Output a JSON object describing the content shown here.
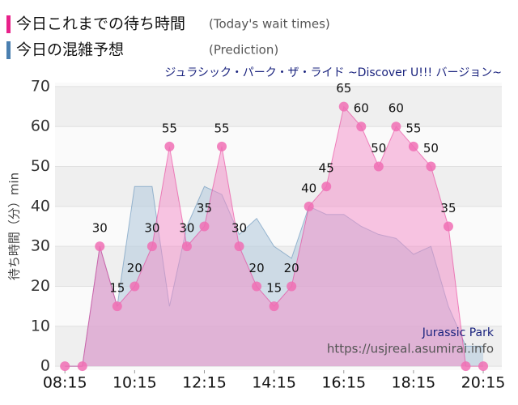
{
  "chart_data": {
    "type": "area",
    "title": "ジュラシック・パーク・ザ・ライド ~Discover U!!! バージョン~",
    "y_label": "待ち時間（分）min",
    "watermark": [
      "Jurassic Park",
      "https://usjreal.asumirai.info"
    ],
    "x": [
      "08:15",
      "08:45",
      "09:15",
      "09:45",
      "10:15",
      "10:45",
      "11:15",
      "11:45",
      "12:15",
      "12:45",
      "13:15",
      "13:45",
      "14:15",
      "14:45",
      "15:15",
      "15:45",
      "16:15",
      "16:45",
      "17:15",
      "17:45",
      "18:15",
      "18:45",
      "19:15",
      "19:45",
      "20:15"
    ],
    "xlim": [
      "07:58",
      "20:47"
    ],
    "xticks": [
      "08:15",
      "10:15",
      "12:15",
      "14:15",
      "16:15",
      "18:15",
      "20:15"
    ],
    "ylim": [
      -1,
      71
    ],
    "yticks": [
      0,
      10,
      20,
      30,
      40,
      50,
      60,
      70
    ],
    "grid": true,
    "series": [
      {
        "name": "今日の混雑予想",
        "note": "(Prediction)",
        "color": "#4a7fb0",
        "fill": "#b5cbdd",
        "values": [
          0,
          0,
          30,
          15,
          45,
          45,
          15,
          35,
          45,
          43,
          33,
          37,
          30,
          27,
          40,
          38,
          38,
          35,
          33,
          32,
          28,
          30,
          15,
          5,
          5
        ]
      },
      {
        "name": "今日これまでの待ち時間",
        "note": "(Today's wait times)",
        "color": "#e8218a",
        "fill": "#f48cc8",
        "markers": true,
        "values": [
          0,
          0,
          30,
          15,
          20,
          30,
          55,
          30,
          35,
          55,
          30,
          20,
          15,
          20,
          40,
          45,
          65,
          60,
          50,
          60,
          55,
          50,
          35,
          0,
          0
        ]
      }
    ]
  }
}
